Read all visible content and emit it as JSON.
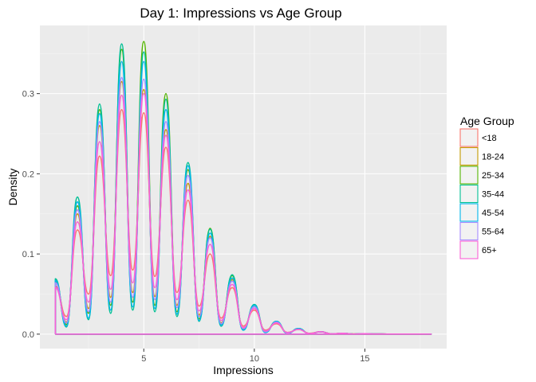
{
  "chart_data": {
    "type": "line",
    "title": "Day 1: Impressions vs Age Group",
    "xlabel": "Impressions",
    "ylabel": "Density",
    "xlim": [
      0.3,
      18.7
    ],
    "ylim": [
      -0.018,
      0.385
    ],
    "x_ticks": [
      5,
      10,
      15
    ],
    "y_ticks": [
      0.0,
      0.1,
      0.2,
      0.3
    ],
    "y_tick_labels": [
      "0.0",
      "0.1",
      "0.2",
      "0.3"
    ],
    "grid": true,
    "legend": {
      "title": "Age Group",
      "position": "right"
    },
    "peak_x": [
      1,
      2,
      3,
      4,
      5,
      6,
      7,
      8,
      9,
      10,
      11,
      12,
      13,
      14,
      15
    ],
    "x_range": [
      1,
      18
    ],
    "series": [
      {
        "name": "<18",
        "color": "#F8766D",
        "peaks": [
          0.06,
          0.13,
          0.222,
          0.28,
          0.276,
          0.233,
          0.167,
          0.1,
          0.058,
          0.03,
          0.013,
          0.006,
          0.003,
          0.001,
          0.0005
        ],
        "troughs": [
          0.022,
          0.05,
          0.073,
          0.08,
          0.072,
          0.052,
          0.035,
          0.02,
          0.01,
          0.005,
          0.002,
          0.001,
          0.0004,
          0.0002
        ]
      },
      {
        "name": "18-24",
        "color": "#C49A00",
        "peaks": [
          0.065,
          0.15,
          0.26,
          0.315,
          0.305,
          0.255,
          0.188,
          0.122,
          0.068,
          0.034,
          0.015,
          0.006,
          0.003,
          0.001,
          0.0005
        ],
        "troughs": [
          0.015,
          0.032,
          0.046,
          0.052,
          0.047,
          0.036,
          0.024,
          0.014,
          0.007,
          0.004,
          0.002,
          0.001,
          0.0004,
          0.0002
        ]
      },
      {
        "name": "25-34",
        "color": "#53B400",
        "peaks": [
          0.066,
          0.16,
          0.28,
          0.355,
          0.365,
          0.3,
          0.205,
          0.132,
          0.073,
          0.036,
          0.016,
          0.007,
          0.003,
          0.001,
          0.0005
        ],
        "troughs": [
          0.012,
          0.026,
          0.036,
          0.04,
          0.036,
          0.028,
          0.019,
          0.012,
          0.006,
          0.003,
          0.001,
          0.0005,
          0.0002,
          0.0001
        ]
      },
      {
        "name": "35-44",
        "color": "#00C094",
        "peaks": [
          0.069,
          0.171,
          0.287,
          0.362,
          0.352,
          0.293,
          0.214,
          0.131,
          0.074,
          0.037,
          0.016,
          0.007,
          0.003,
          0.001,
          0.0005
        ],
        "troughs": [
          0.009,
          0.018,
          0.026,
          0.03,
          0.028,
          0.022,
          0.016,
          0.01,
          0.005,
          0.002,
          0.001,
          0.0005,
          0.0002,
          0.0001
        ]
      },
      {
        "name": "45-54",
        "color": "#00B6EB",
        "peaks": [
          0.067,
          0.165,
          0.275,
          0.34,
          0.34,
          0.28,
          0.21,
          0.126,
          0.07,
          0.036,
          0.016,
          0.007,
          0.003,
          0.001,
          0.0005
        ],
        "troughs": [
          0.01,
          0.02,
          0.03,
          0.034,
          0.032,
          0.025,
          0.017,
          0.011,
          0.005,
          0.002,
          0.001,
          0.0005,
          0.0002,
          0.0001
        ]
      },
      {
        "name": "55-64",
        "color": "#A58AFF",
        "peaks": [
          0.064,
          0.155,
          0.265,
          0.32,
          0.318,
          0.265,
          0.198,
          0.12,
          0.066,
          0.034,
          0.015,
          0.006,
          0.003,
          0.001,
          0.0005
        ],
        "troughs": [
          0.014,
          0.028,
          0.04,
          0.046,
          0.043,
          0.033,
          0.022,
          0.013,
          0.007,
          0.003,
          0.0015,
          0.0007,
          0.0003,
          0.0001
        ]
      },
      {
        "name": "65+",
        "color": "#FB61D7",
        "peaks": [
          0.058,
          0.14,
          0.24,
          0.298,
          0.3,
          0.248,
          0.18,
          0.112,
          0.062,
          0.032,
          0.014,
          0.006,
          0.003,
          0.001,
          0.0005
        ],
        "troughs": [
          0.018,
          0.04,
          0.056,
          0.064,
          0.058,
          0.043,
          0.029,
          0.017,
          0.008,
          0.004,
          0.002,
          0.0008,
          0.0003,
          0.0001
        ]
      }
    ]
  }
}
